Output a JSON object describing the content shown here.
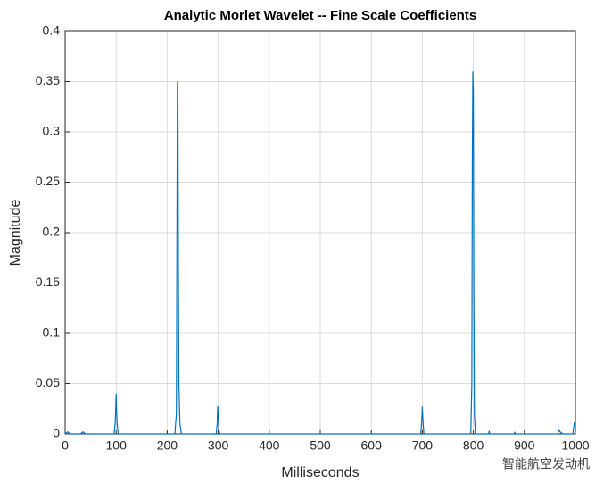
{
  "chart_data": {
    "type": "line",
    "title": "Analytic Morlet Wavelet -- Fine Scale Coefficients",
    "xlabel": "Milliseconds",
    "ylabel": "Magnitude",
    "watermark": "智能航空发动机",
    "x": [
      0,
      5,
      10,
      30,
      35,
      40,
      96,
      98,
      99,
      100,
      101,
      102,
      104,
      215,
      218,
      219,
      220,
      221,
      222,
      223,
      225,
      228,
      296,
      298,
      299,
      300,
      301,
      303,
      697,
      699,
      700,
      701,
      703,
      795,
      797,
      798,
      799,
      800,
      801,
      802,
      804,
      830,
      831,
      832,
      880,
      881,
      882,
      965,
      968,
      970,
      975,
      995,
      998,
      1000
    ],
    "series": [
      {
        "name": "Magnitude",
        "color": "#0072bd",
        "values": [
          0,
          0.002,
          0,
          0,
          0.002,
          0,
          0,
          0.01,
          0.022,
          0.04,
          0.022,
          0.01,
          0,
          0,
          0.02,
          0.18,
          0.35,
          0.34,
          0.16,
          0.05,
          0.01,
          0,
          0,
          0.01,
          0.028,
          0.02,
          0.005,
          0,
          0,
          0.015,
          0.027,
          0.015,
          0,
          0,
          0.05,
          0.27,
          0.36,
          0.34,
          0.14,
          0.02,
          0,
          0,
          0.003,
          0,
          0,
          0.002,
          0,
          0,
          0.004,
          0.002,
          0,
          0,
          0.012,
          0.012
        ]
      }
    ],
    "xlim": [
      0,
      1000
    ],
    "ylim": [
      0,
      0.4
    ],
    "xticks": [
      0,
      100,
      200,
      300,
      400,
      500,
      600,
      700,
      800,
      900,
      1000
    ],
    "yticks": [
      0,
      0.05,
      0.1,
      0.15,
      0.2,
      0.25,
      0.3,
      0.35,
      0.4
    ],
    "grid": true
  }
}
